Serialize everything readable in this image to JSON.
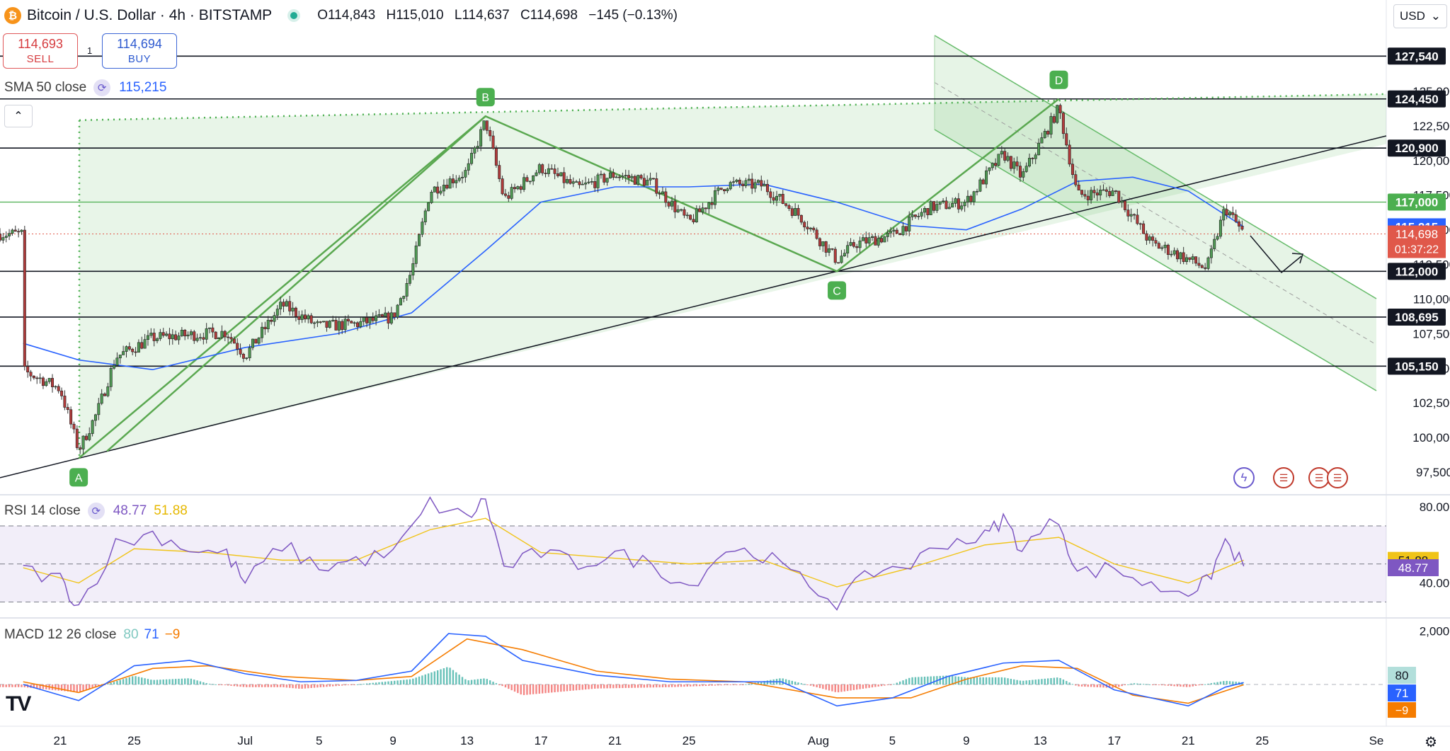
{
  "header": {
    "title": "Bitcoin / U.S. Dollar · 4h · BITSTAMP",
    "coin_glyph": "₿",
    "open": "O114,843",
    "high": "H115,010",
    "low": "L114,637",
    "close": "C114,698",
    "change": "−145 (−0.13%)"
  },
  "trade": {
    "sell_price": "114,693",
    "sell_label": "SELL",
    "spread": "1",
    "buy_price": "114,694",
    "buy_label": "BUY"
  },
  "currency": "USD",
  "indicators": {
    "sma": {
      "label": "SMA 50 close",
      "value": "115,215",
      "color": "#2962ff"
    },
    "rsi": {
      "label": "RSI 14 close",
      "value": "48.77",
      "ma_value": "51.88"
    },
    "macd": {
      "label": "MACD 12 26 close",
      "hist": "80",
      "macd": "71",
      "signal": "−9"
    }
  },
  "icons": [
    "bitcoin-icon",
    "live-dot-icon",
    "refresh-icon",
    "chevron-up-icon",
    "chevron-down-icon",
    "lightning-icon",
    "us-flag-icon",
    "settings-gear-icon",
    "tradingview-logo-icon"
  ],
  "chart_data": {
    "type": "candlestick",
    "timeframe": "4h",
    "symbol": "BTCUSD",
    "x_ticks": [
      "21",
      "25",
      "Jul",
      "5",
      "9",
      "13",
      "17",
      "21",
      "25",
      "Aug",
      "5",
      "9",
      "13",
      "17",
      "21",
      "25",
      "Se"
    ],
    "y_ticks": [
      "97,500",
      "100,000",
      "102,500",
      "105,000",
      "107,500",
      "110,000",
      "112,500",
      "115,000",
      "117,500",
      "120,000",
      "122,500",
      "125,000"
    ],
    "ylim": [
      96000,
      131000
    ],
    "price_path": [
      {
        "d": "Jun 19",
        "p": 104800
      },
      {
        "d": "Jun 20",
        "p": 104200
      },
      {
        "d": "Jun 21",
        "p": 103500
      },
      {
        "d": "Jun 22",
        "p": 99100
      },
      {
        "d": "Jun 23",
        "p": 101800
      },
      {
        "d": "Jun 24",
        "p": 105800
      },
      {
        "d": "Jun 26",
        "p": 107200
      },
      {
        "d": "Jun 28",
        "p": 107400
      },
      {
        "d": "Jun 30",
        "p": 107600
      },
      {
        "d": "Jul 1",
        "p": 105900
      },
      {
        "d": "Jul 3",
        "p": 109600
      },
      {
        "d": "Jul 5",
        "p": 108000
      },
      {
        "d": "Jul 7",
        "p": 108200
      },
      {
        "d": "Jul 9",
        "p": 108700
      },
      {
        "d": "Jul 10",
        "p": 112000
      },
      {
        "d": "Jul 11",
        "p": 117800
      },
      {
        "d": "Jul 13",
        "p": 119200
      },
      {
        "d": "Jul 14",
        "p": 122900
      },
      {
        "d": "Jul 15",
        "p": 117200
      },
      {
        "d": "Jul 17",
        "p": 119500
      },
      {
        "d": "Jul 19",
        "p": 118000
      },
      {
        "d": "Jul 21",
        "p": 119000
      },
      {
        "d": "Jul 23",
        "p": 118400
      },
      {
        "d": "Jul 25",
        "p": 115500
      },
      {
        "d": "Jul 27",
        "p": 118300
      },
      {
        "d": "Jul 29",
        "p": 118200
      },
      {
        "d": "Jul 31",
        "p": 116000
      },
      {
        "d": "Aug 2",
        "p": 112800
      },
      {
        "d": "Aug 3",
        "p": 114000
      },
      {
        "d": "Aug 5",
        "p": 114600
      },
      {
        "d": "Aug 7",
        "p": 116600
      },
      {
        "d": "Aug 9",
        "p": 117000
      },
      {
        "d": "Aug 11",
        "p": 120500
      },
      {
        "d": "Aug 12",
        "p": 118800
      },
      {
        "d": "Aug 14",
        "p": 123800
      },
      {
        "d": "Aug 15",
        "p": 117500
      },
      {
        "d": "Aug 17",
        "p": 117800
      },
      {
        "d": "Aug 19",
        "p": 114000
      },
      {
        "d": "Aug 20",
        "p": 113500
      },
      {
        "d": "Aug 22",
        "p": 112200
      },
      {
        "d": "Aug 23",
        "p": 116600
      },
      {
        "d": "Aug 24",
        "p": 114700
      }
    ],
    "sma50_path": [
      {
        "d": "Jun 19",
        "p": 106800
      },
      {
        "d": "Jun 22",
        "p": 105600
      },
      {
        "d": "Jun 26",
        "p": 104900
      },
      {
        "d": "Jul 1",
        "p": 106500
      },
      {
        "d": "Jul 6",
        "p": 107500
      },
      {
        "d": "Jul 10",
        "p": 109000
      },
      {
        "d": "Jul 14",
        "p": 113500
      },
      {
        "d": "Jul 17",
        "p": 117000
      },
      {
        "d": "Jul 21",
        "p": 118100
      },
      {
        "d": "Jul 25",
        "p": 118100
      },
      {
        "d": "Jul 29",
        "p": 118300
      },
      {
        "d": "Aug 2",
        "p": 117000
      },
      {
        "d": "Aug 6",
        "p": 115300
      },
      {
        "d": "Aug 9",
        "p": 115000
      },
      {
        "d": "Aug 12",
        "p": 116500
      },
      {
        "d": "Aug 15",
        "p": 118500
      },
      {
        "d": "Aug 18",
        "p": 118800
      },
      {
        "d": "Aug 21",
        "p": 117800
      },
      {
        "d": "Aug 24",
        "p": 115215
      }
    ],
    "levels": [
      {
        "label": "127,540",
        "value": 127540,
        "color": "#131722"
      },
      {
        "label": "124,450",
        "value": 124450,
        "color": "#131722"
      },
      {
        "label": "120,900",
        "value": 120900,
        "color": "#131722"
      },
      {
        "label": "117,000",
        "value": 117000,
        "color": "#4caf50"
      },
      {
        "label": "112,000",
        "value": 112000,
        "color": "#131722"
      },
      {
        "label": "108,695",
        "value": 108695,
        "color": "#131722"
      },
      {
        "label": "105,150",
        "value": 105150,
        "color": "#131722"
      }
    ],
    "price_badges": [
      {
        "label": "115,215",
        "value": 115215,
        "color": "#2962ff"
      },
      {
        "label": "114,698",
        "sub": "01:37:22",
        "value": 114698,
        "color": "#e0584a"
      }
    ],
    "pattern_points": [
      {
        "name": "A",
        "d": "Jun 22",
        "p": 98500
      },
      {
        "name": "B",
        "d": "Jul 14",
        "p": 123200
      },
      {
        "name": "C",
        "d": "Aug 2",
        "p": 112000
      },
      {
        "name": "D",
        "d": "Aug 14",
        "p": 124450
      }
    ],
    "rsi": {
      "ticks": [
        "80.00",
        "40.00"
      ],
      "levels": [
        70,
        50,
        30
      ],
      "ylim": [
        22,
        86
      ],
      "value": 48.77,
      "ma": 51.88,
      "path": [
        {
          "d": "Jun 19",
          "p": 47
        },
        {
          "d": "Jun 21",
          "p": 42
        },
        {
          "d": "Jun 22",
          "p": 28
        },
        {
          "d": "Jun 24",
          "p": 60
        },
        {
          "d": "Jun 26",
          "p": 66
        },
        {
          "d": "Jun 28",
          "p": 58
        },
        {
          "d": "Jun 30",
          "p": 55
        },
        {
          "d": "Jul 1",
          "p": 40
        },
        {
          "d": "Jul 3",
          "p": 60
        },
        {
          "d": "Jul 5",
          "p": 48
        },
        {
          "d": "Jul 7",
          "p": 52
        },
        {
          "d": "Jul 9",
          "p": 55
        },
        {
          "d": "Jul 11",
          "p": 82
        },
        {
          "d": "Jul 13",
          "p": 74
        },
        {
          "d": "Jul 14",
          "p": 84
        },
        {
          "d": "Jul 15",
          "p": 48
        },
        {
          "d": "Jul 17",
          "p": 56
        },
        {
          "d": "Jul 19",
          "p": 50
        },
        {
          "d": "Jul 21",
          "p": 55
        },
        {
          "d": "Jul 23",
          "p": 50
        },
        {
          "d": "Jul 25",
          "p": 38
        },
        {
          "d": "Jul 27",
          "p": 58
        },
        {
          "d": "Jul 29",
          "p": 55
        },
        {
          "d": "Jul 31",
          "p": 42
        },
        {
          "d": "Aug 2",
          "p": 30
        },
        {
          "d": "Aug 4",
          "p": 46
        },
        {
          "d": "Aug 6",
          "p": 50
        },
        {
          "d": "Aug 8",
          "p": 62
        },
        {
          "d": "Aug 10",
          "p": 64
        },
        {
          "d": "Aug 11",
          "p": 74
        },
        {
          "d": "Aug 12",
          "p": 58
        },
        {
          "d": "Aug 14",
          "p": 74
        },
        {
          "d": "Aug 15",
          "p": 45
        },
        {
          "d": "Aug 17",
          "p": 48
        },
        {
          "d": "Aug 19",
          "p": 38
        },
        {
          "d": "Aug 21",
          "p": 36
        },
        {
          "d": "Aug 22",
          "p": 40
        },
        {
          "d": "Aug 23",
          "p": 62
        },
        {
          "d": "Aug 24",
          "p": 49
        }
      ],
      "ma_path": [
        {
          "d": "Jun 19",
          "p": 48
        },
        {
          "d": "Jun 22",
          "p": 40
        },
        {
          "d": "Jun 25",
          "p": 58
        },
        {
          "d": "Jun 29",
          "p": 56
        },
        {
          "d": "Jul 3",
          "p": 52
        },
        {
          "d": "Jul 7",
          "p": 52
        },
        {
          "d": "Jul 11",
          "p": 68
        },
        {
          "d": "Jul 14",
          "p": 74
        },
        {
          "d": "Jul 17",
          "p": 56
        },
        {
          "d": "Jul 21",
          "p": 53
        },
        {
          "d": "Jul 25",
          "p": 50
        },
        {
          "d": "Jul 29",
          "p": 52
        },
        {
          "d": "Aug 2",
          "p": 38
        },
        {
          "d": "Aug 6",
          "p": 48
        },
        {
          "d": "Aug 10",
          "p": 60
        },
        {
          "d": "Aug 14",
          "p": 64
        },
        {
          "d": "Aug 17",
          "p": 50
        },
        {
          "d": "Aug 21",
          "p": 40
        },
        {
          "d": "Aug 24",
          "p": 52
        }
      ]
    },
    "macd": {
      "ticks": [
        "2,000"
      ],
      "ylim": [
        -1400,
        2300
      ],
      "hist_value": 80,
      "macd_value": 71,
      "signal_value": -9,
      "macd_path": [
        {
          "d": "Jun 19",
          "p": 0
        },
        {
          "d": "Jun 22",
          "p": -600
        },
        {
          "d": "Jun 25",
          "p": 700
        },
        {
          "d": "Jun 28",
          "p": 900
        },
        {
          "d": "Jul 1",
          "p": 400
        },
        {
          "d": "Jul 4",
          "p": 100
        },
        {
          "d": "Jul 7",
          "p": 150
        },
        {
          "d": "Jul 10",
          "p": 500
        },
        {
          "d": "Jul 12",
          "p": 1900
        },
        {
          "d": "Jul 14",
          "p": 1800
        },
        {
          "d": "Jul 16",
          "p": 900
        },
        {
          "d": "Jul 20",
          "p": 350
        },
        {
          "d": "Jul 24",
          "p": 100
        },
        {
          "d": "Jul 27",
          "p": 100
        },
        {
          "d": "Jul 30",
          "p": 100
        },
        {
          "d": "Aug 2",
          "p": -800
        },
        {
          "d": "Aug 5",
          "p": -500
        },
        {
          "d": "Aug 8",
          "p": 300
        },
        {
          "d": "Aug 11",
          "p": 800
        },
        {
          "d": "Aug 14",
          "p": 900
        },
        {
          "d": "Aug 17",
          "p": -200
        },
        {
          "d": "Aug 21",
          "p": -800
        },
        {
          "d": "Aug 23",
          "p": -100
        },
        {
          "d": "Aug 24",
          "p": 71
        }
      ],
      "signal_path": [
        {
          "d": "Jun 19",
          "p": 100
        },
        {
          "d": "Jun 22",
          "p": -300
        },
        {
          "d": "Jun 26",
          "p": 600
        },
        {
          "d": "Jun 29",
          "p": 700
        },
        {
          "d": "Jul 3",
          "p": 300
        },
        {
          "d": "Jul 7",
          "p": 150
        },
        {
          "d": "Jul 10",
          "p": 300
        },
        {
          "d": "Jul 13",
          "p": 1700
        },
        {
          "d": "Jul 16",
          "p": 1300
        },
        {
          "d": "Jul 20",
          "p": 500
        },
        {
          "d": "Jul 24",
          "p": 200
        },
        {
          "d": "Jul 28",
          "p": 100
        },
        {
          "d": "Aug 2",
          "p": -500
        },
        {
          "d": "Aug 6",
          "p": -500
        },
        {
          "d": "Aug 9",
          "p": 200
        },
        {
          "d": "Aug 12",
          "p": 700
        },
        {
          "d": "Aug 15",
          "p": 600
        },
        {
          "d": "Aug 18",
          "p": -400
        },
        {
          "d": "Aug 21",
          "p": -700
        },
        {
          "d": "Aug 24",
          "p": -9
        }
      ]
    }
  }
}
